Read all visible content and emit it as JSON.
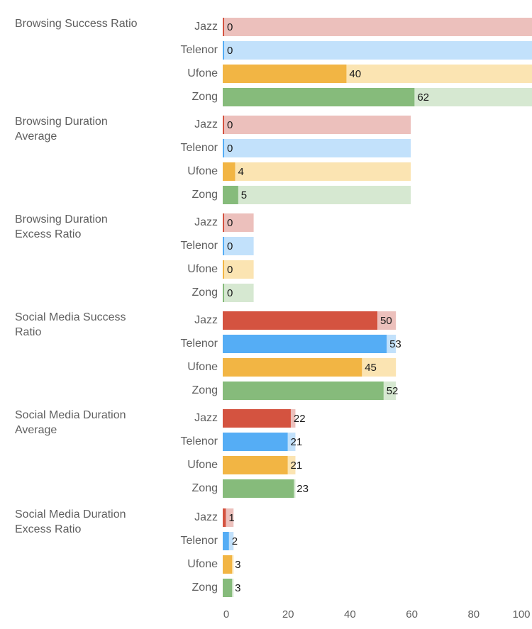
{
  "chart_data": {
    "type": "bar",
    "orientation": "horizontal",
    "xlim": [
      0,
      100
    ],
    "ticks": [
      0,
      20,
      40,
      60,
      80,
      100
    ],
    "tick_labels": [
      "0",
      "20",
      "40",
      "60",
      "80",
      "100"
    ],
    "operators": [
      "Jazz",
      "Telenor",
      "Ufone",
      "Zong"
    ],
    "colors": {
      "Jazz": {
        "strong": "#d45340",
        "light": "#ecc0bc"
      },
      "Telenor": {
        "strong": "#55adf5",
        "light": "#c2e1fb"
      },
      "Ufone": {
        "strong": "#f2b544",
        "light": "#fbe4b2"
      },
      "Zong": {
        "strong": "#86bb7b",
        "light": "#d6e8d1"
      }
    },
    "groups": [
      {
        "label": "Browsing Success Ratio",
        "max": 100,
        "values": [
          0,
          0,
          40,
          62
        ],
        "value_labels": [
          "0",
          "0",
          "40",
          "62"
        ],
        "highlight": false
      },
      {
        "label": "Browsing Duration\nAverage",
        "max": 60.8,
        "values": [
          0,
          0,
          4,
          5
        ],
        "value_labels": [
          "0",
          "0",
          "4",
          "5"
        ],
        "highlight": false
      },
      {
        "label": "Browsing Duration\nExcess Ratio",
        "max": 10,
        "values": [
          0,
          0,
          0,
          0
        ],
        "value_labels": [
          "0",
          "0",
          "0",
          "0"
        ],
        "highlight": false
      },
      {
        "label": "Social Media Success\nRatio",
        "max": 56,
        "values": [
          50,
          53,
          45,
          52
        ],
        "value_labels": [
          "50",
          "53",
          "45",
          "52"
        ],
        "highlight": true
      },
      {
        "label": "Social Media Duration\nAverage",
        "max": 23.5,
        "values": [
          22,
          21,
          21,
          23
        ],
        "value_labels": [
          "22",
          "21",
          "21",
          "23"
        ],
        "highlight": true
      },
      {
        "label": "Social Media Duration\nExcess Ratio",
        "max": 3.5,
        "values": [
          1,
          2,
          3,
          3
        ],
        "value_labels": [
          "1",
          "2",
          "3",
          "3"
        ],
        "highlight": true
      }
    ]
  }
}
